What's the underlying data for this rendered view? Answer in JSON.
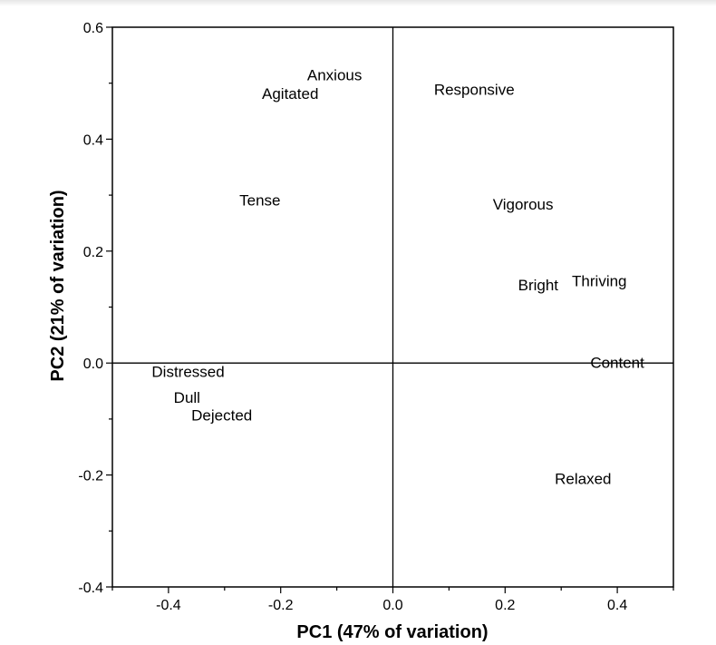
{
  "chart_data": {
    "type": "scatter",
    "xlabel": "PC1 (47% of variation)",
    "ylabel": "PC2 (21% of variation)",
    "xlim": [
      -0.5,
      0.5
    ],
    "ylim": [
      -0.4,
      0.6
    ],
    "x_ticks": [
      "-0.4",
      "-0.2",
      "0.0",
      "0.2",
      "0.4"
    ],
    "y_ticks": [
      "-0.4",
      "-0.2",
      "0.0",
      "0.2",
      "0.4",
      "0.6"
    ],
    "grid": false,
    "zero_lines": true,
    "points": [
      {
        "label": "Anxious",
        "x": -0.104,
        "y": 0.515
      },
      {
        "label": "Agitated",
        "x": -0.183,
        "y": 0.482
      },
      {
        "label": "Responsive",
        "x": 0.145,
        "y": 0.489
      },
      {
        "label": "Tense",
        "x": -0.237,
        "y": 0.291
      },
      {
        "label": "Vigorous",
        "x": 0.232,
        "y": 0.284
      },
      {
        "label": "Bright",
        "x": 0.259,
        "y": 0.14
      },
      {
        "label": "Thriving",
        "x": 0.368,
        "y": 0.147
      },
      {
        "label": "Content",
        "x": 0.4,
        "y": 0.001
      },
      {
        "label": "Distressed",
        "x": -0.365,
        "y": -0.015
      },
      {
        "label": "Dull",
        "x": -0.367,
        "y": -0.061
      },
      {
        "label": "Dejected",
        "x": -0.305,
        "y": -0.093
      },
      {
        "label": "Relaxed",
        "x": 0.339,
        "y": -0.206
      }
    ]
  }
}
